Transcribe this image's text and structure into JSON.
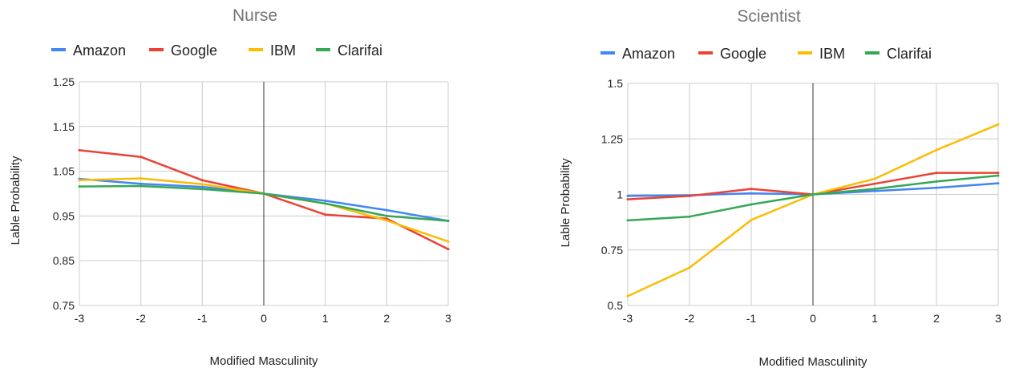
{
  "chart_data": [
    {
      "type": "line",
      "title": "Nurse",
      "xlabel": "Modified Masculinity",
      "ylabel": "Lable Probability",
      "x": [
        -3,
        -2,
        -1,
        0,
        1,
        2,
        3
      ],
      "xticks": [
        "-3",
        "-2",
        "-1",
        "0",
        "1",
        "2",
        "3"
      ],
      "yticks": [
        "0.75",
        "0.85",
        "0.95",
        "1.05",
        "1.15",
        "1.25"
      ],
      "ytick_values": [
        0.75,
        0.85,
        0.95,
        1.05,
        1.15,
        1.25
      ],
      "ylim": [
        0.75,
        1.25
      ],
      "xlim": [
        -3,
        3
      ],
      "grid": true,
      "legend_position": "top",
      "series": [
        {
          "name": "Amazon",
          "color": "#4285F4",
          "values": [
            1.033,
            1.022,
            1.015,
            1.0,
            0.984,
            0.963,
            0.939
          ]
        },
        {
          "name": "Google",
          "color": "#EA4335",
          "values": [
            1.097,
            1.082,
            1.03,
            1.0,
            0.953,
            0.944,
            0.876
          ]
        },
        {
          "name": "IBM",
          "color": "#FBBC04",
          "values": [
            1.03,
            1.034,
            1.021,
            1.0,
            0.978,
            0.94,
            0.893
          ]
        },
        {
          "name": "Clarifai",
          "color": "#34A853",
          "values": [
            1.016,
            1.017,
            1.01,
            1.0,
            0.978,
            0.95,
            0.939
          ]
        }
      ]
    },
    {
      "type": "line",
      "title": "Scientist",
      "xlabel": "Modified Masculinity",
      "ylabel": "Lable Probability",
      "x": [
        -3,
        -2,
        -1,
        0,
        1,
        2,
        3
      ],
      "xticks": [
        "-3",
        "-2",
        "-1",
        "0",
        "1",
        "2",
        "3"
      ],
      "yticks": [
        "0.5",
        "0.75",
        "1",
        "1.25",
        "1.5"
      ],
      "ytick_values": [
        0.5,
        0.75,
        1.0,
        1.25,
        1.5
      ],
      "ylim": [
        0.5,
        1.5
      ],
      "xlim": [
        -3,
        3
      ],
      "grid": true,
      "legend_position": "top",
      "series": [
        {
          "name": "Amazon",
          "color": "#4285F4",
          "values": [
            0.993,
            0.996,
            1.005,
            1.0,
            1.015,
            1.03,
            1.05
          ]
        },
        {
          "name": "Google",
          "color": "#EA4335",
          "values": [
            0.978,
            0.993,
            1.025,
            1.0,
            1.048,
            1.097,
            1.097
          ]
        },
        {
          "name": "IBM",
          "color": "#FBBC04",
          "values": [
            0.542,
            0.67,
            0.885,
            1.0,
            1.07,
            1.2,
            1.315
          ]
        },
        {
          "name": "Clarifai",
          "color": "#34A853",
          "values": [
            0.883,
            0.9,
            0.955,
            1.0,
            1.025,
            1.058,
            1.085
          ]
        }
      ]
    }
  ]
}
